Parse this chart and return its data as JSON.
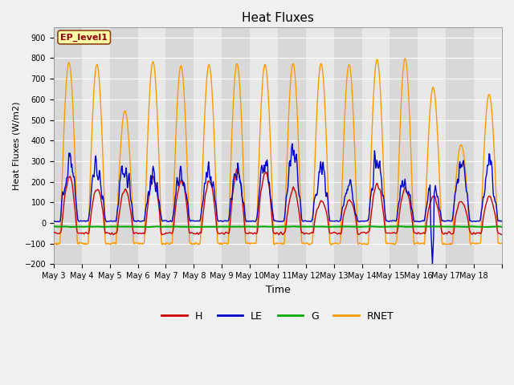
{
  "title": "Heat Fluxes",
  "xlabel": "Time",
  "ylabel": "Heat Fluxes (W/m2)",
  "ylim": [
    -200,
    950
  ],
  "yticks": [
    -200,
    -100,
    0,
    100,
    200,
    300,
    400,
    500,
    600,
    700,
    800,
    900
  ],
  "legend_label": "EP_level1",
  "series_labels": [
    "H",
    "LE",
    "G",
    "RNET"
  ],
  "series_colors": [
    "#cc0000",
    "#0000cc",
    "#00aa00",
    "#ff9900"
  ],
  "background_color": "#e8e8e8",
  "start_day": 3,
  "end_day": 18,
  "n_days": 16,
  "night_color": "#d0d0d0",
  "day_color": "#e8e8e8"
}
